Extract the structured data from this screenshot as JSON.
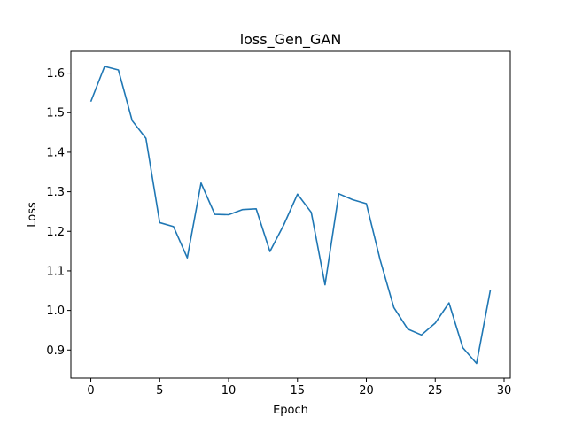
{
  "chart_data": {
    "type": "line",
    "title": "loss_Gen_GAN",
    "xlabel": "Epoch",
    "ylabel": "Loss",
    "xlim": [
      -1.45,
      30.45
    ],
    "ylim": [
      0.829,
      1.655
    ],
    "xticks": [
      0,
      5,
      10,
      15,
      20,
      25,
      30
    ],
    "yticks": [
      0.9,
      1.0,
      1.1,
      1.2,
      1.3,
      1.4,
      1.5,
      1.6
    ],
    "grid": false,
    "series": [
      {
        "color": "#1f77b4",
        "x": [
          0,
          1,
          2,
          3,
          4,
          5,
          6,
          7,
          8,
          9,
          10,
          11,
          12,
          13,
          14,
          15,
          16,
          17,
          18,
          19,
          20,
          21,
          22,
          23,
          24,
          25,
          26,
          27,
          28,
          29
        ],
        "y": [
          1.528,
          1.617,
          1.608,
          1.48,
          1.435,
          1.222,
          1.212,
          1.133,
          1.322,
          1.243,
          1.242,
          1.255,
          1.257,
          1.149,
          1.216,
          1.294,
          1.248,
          1.065,
          1.295,
          1.28,
          1.27,
          1.128,
          1.007,
          0.953,
          0.938,
          0.968,
          1.019,
          0.906,
          0.866,
          1.051
        ]
      }
    ]
  }
}
